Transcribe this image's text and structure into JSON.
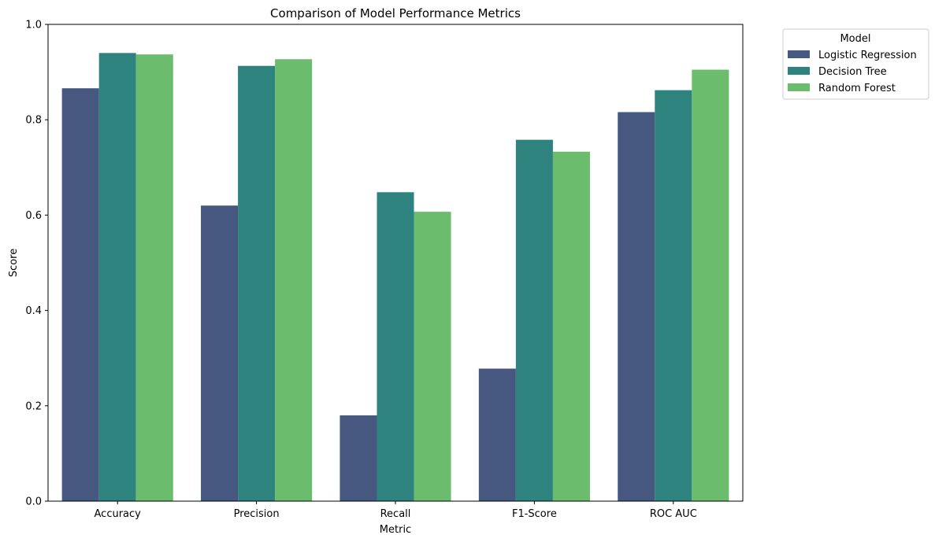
{
  "chart_data": {
    "type": "bar",
    "title": "Comparison of Model Performance Metrics",
    "xlabel": "Metric",
    "ylabel": "Score",
    "ylim": [
      0,
      1.0
    ],
    "yticks": [
      0.0,
      0.2,
      0.4,
      0.6,
      0.8,
      1.0
    ],
    "ytick_labels": [
      "0.0",
      "0.2",
      "0.4",
      "0.6",
      "0.8",
      "1.0"
    ],
    "categories": [
      "Accuracy",
      "Precision",
      "Recall",
      "F1-Score",
      "ROC AUC"
    ],
    "grid": false,
    "legend": {
      "title": "Model",
      "placement": "outside-top-right"
    },
    "series": [
      {
        "name": "Logistic Regression",
        "color": "#46587f",
        "values": [
          0.866,
          0.62,
          0.18,
          0.278,
          0.816
        ]
      },
      {
        "name": "Decision Tree",
        "color": "#2e837f",
        "values": [
          0.94,
          0.913,
          0.648,
          0.758,
          0.862
        ]
      },
      {
        "name": "Random Forest",
        "color": "#6bbd6d",
        "values": [
          0.937,
          0.927,
          0.607,
          0.733,
          0.905
        ]
      }
    ]
  }
}
